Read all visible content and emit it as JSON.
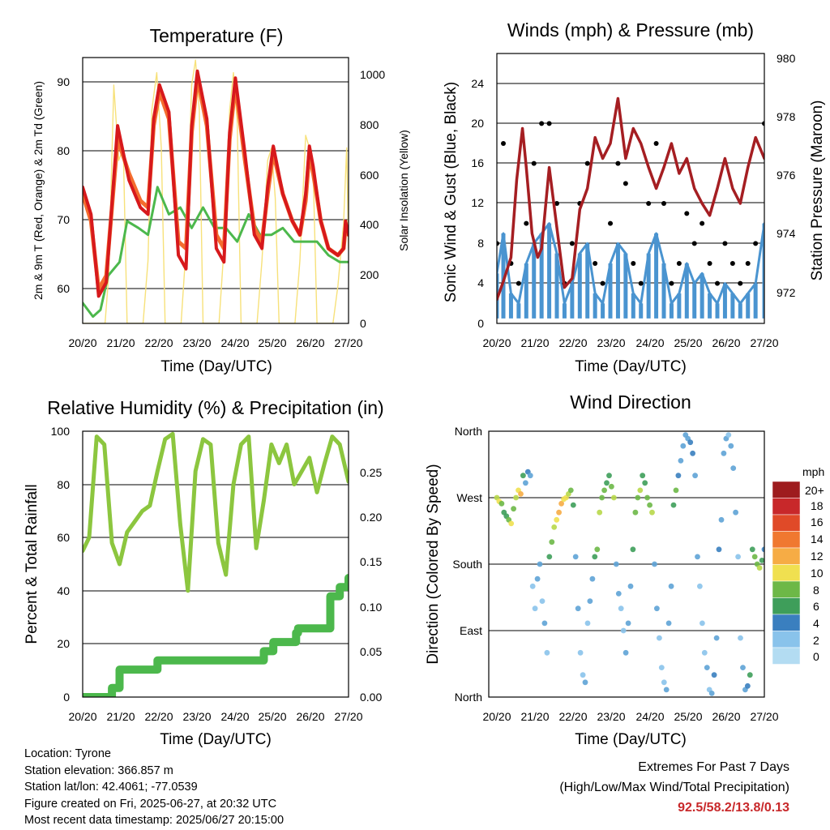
{
  "time_ticks": [
    "20/20",
    "21/20",
    "22/20",
    "23/20",
    "24/20",
    "25/20",
    "26/20",
    "27/20"
  ],
  "time_axis_label": "Time (Day/UTC)",
  "charts": {
    "temperature": {
      "title": "Temperature (F)",
      "ylabel_left": "2m & 9m T (Red, Orange) & 2m Td (Green)",
      "ylabel_right": "Solar Insolation (Yellow)",
      "left_ticks": [
        "60",
        "70",
        "80",
        "90"
      ],
      "right_ticks": [
        "0",
        "200",
        "400",
        "600",
        "800",
        "1000"
      ]
    },
    "winds": {
      "title": "Winds (mph) & Pressure (mb)",
      "ylabel_left": "Sonic Wind & Gust (Blue, Black)",
      "ylabel_right": "Station Pressure (Maroon)",
      "left_ticks": [
        "0",
        "4",
        "8",
        "12",
        "16",
        "20",
        "24"
      ],
      "right_ticks": [
        "972",
        "974",
        "976",
        "978",
        "980"
      ]
    },
    "humidity": {
      "title": "Relative Humidity (%) & Precipitation (in)",
      "ylabel_left": "Percent & Total Rainfall",
      "left_ticks": [
        "0",
        "20",
        "40",
        "60",
        "80",
        "100"
      ],
      "right_ticks": [
        "0.00",
        "0.05",
        "0.10",
        "0.15",
        "0.20",
        "0.25"
      ]
    },
    "direction": {
      "title": "Wind Direction",
      "ylabel_left": "Direction (Colored By Speed)",
      "left_ticks": [
        "North",
        "East",
        "South",
        "West",
        "North"
      ],
      "legend_title": "mph",
      "legend_labels": [
        "20+",
        "18",
        "16",
        "14",
        "12",
        "10",
        "8",
        "6",
        "4",
        "2",
        "0"
      ]
    }
  },
  "colors": {
    "t2m": "#d7191c",
    "t9m": "#f46d2e",
    "td": "#4cb84c",
    "solar": "#f7e17a",
    "wind": "#4a94d0",
    "gust": "#000000",
    "pressure": "#a51e22",
    "rh": "#8cc63f",
    "precip": "#4cb84c",
    "speed_scale": [
      "#b3dcf2",
      "#89c3eb",
      "#5ea3d6",
      "#3a7fbf",
      "#3e9e5a",
      "#6db847",
      "#b8d84a",
      "#f0e050",
      "#f6ac45",
      "#f07830",
      "#e04a28",
      "#c8282a",
      "#9e1c1e"
    ]
  },
  "chart_data": [
    {
      "type": "line",
      "title": "Temperature (F)",
      "xlabel": "Time (Day/UTC)",
      "ylabel": "2m & 9m T (Red, Orange) & 2m Td (Green)",
      "y2label": "Solar Insolation (Yellow)",
      "x_range_days": [
        20.83,
        27.83
      ],
      "ylim": [
        55,
        94
      ],
      "y2lim": [
        0,
        1060
      ],
      "series": [
        {
          "name": "2m T",
          "axis": "left",
          "x": [
            20.83,
            21.05,
            21.25,
            21.45,
            21.75,
            22.05,
            22.35,
            22.55,
            22.7,
            22.85,
            23.1,
            23.35,
            23.55,
            23.7,
            23.85,
            24.1,
            24.35,
            24.55,
            24.7,
            24.85,
            25.1,
            25.35,
            25.55,
            25.7,
            25.85,
            26.1,
            26.35,
            26.55,
            26.7,
            26.8,
            26.9,
            27.1,
            27.3,
            27.55,
            27.7,
            27.75,
            27.83
          ],
          "y": [
            75,
            71,
            59,
            61,
            84,
            76,
            72,
            71,
            85,
            90,
            86,
            65,
            63,
            84,
            92,
            85,
            66,
            64,
            83,
            91,
            80,
            68,
            66,
            75,
            81,
            74,
            70,
            68,
            74,
            81,
            78,
            70,
            66,
            65,
            66,
            70,
            68
          ]
        },
        {
          "name": "9m T",
          "axis": "left",
          "x": [
            20.83,
            21.05,
            21.25,
            21.45,
            21.75,
            22.05,
            22.35,
            22.55,
            22.7,
            22.85,
            23.1,
            23.35,
            23.55,
            23.7,
            23.85,
            24.1,
            24.35,
            24.55,
            24.7,
            24.85,
            25.1,
            25.35,
            25.55,
            25.7,
            25.85,
            26.1,
            26.35,
            26.55,
            26.7,
            26.8,
            26.9,
            27.1,
            27.3,
            27.55,
            27.7,
            27.75,
            27.83
          ],
          "y": [
            74,
            70,
            60,
            62,
            82,
            77,
            73,
            72,
            84,
            89,
            85,
            67,
            66,
            83,
            91,
            84,
            68,
            66,
            82,
            90,
            79,
            69,
            67,
            74,
            80,
            74,
            70,
            68,
            73,
            80,
            77,
            70,
            66,
            65,
            66,
            69,
            68
          ]
        },
        {
          "name": "2m Td",
          "axis": "left",
          "x": [
            20.83,
            21.1,
            21.3,
            21.5,
            21.8,
            22.0,
            22.3,
            22.55,
            22.8,
            23.1,
            23.4,
            23.7,
            24.0,
            24.3,
            24.6,
            24.9,
            25.2,
            25.5,
            25.8,
            26.1,
            26.4,
            26.7,
            27.0,
            27.3,
            27.6,
            27.83
          ],
          "y": [
            58,
            56,
            57,
            62,
            64,
            70,
            69,
            68,
            75,
            71,
            72,
            69,
            72,
            69,
            69,
            67,
            71,
            68,
            68,
            69,
            67,
            67,
            67,
            65,
            64,
            64
          ]
        },
        {
          "name": "Solar Insolation",
          "axis": "right",
          "x": [
            20.83,
            21.42,
            21.52,
            21.65,
            21.78,
            21.9,
            22.0,
            22.42,
            22.55,
            22.65,
            22.78,
            22.9,
            23.0,
            23.42,
            23.55,
            23.7,
            23.8,
            23.9,
            24.0,
            24.42,
            24.55,
            24.7,
            24.8,
            24.9,
            25.0,
            25.42,
            25.55,
            25.7,
            25.8,
            25.9,
            26.0,
            26.42,
            26.55,
            26.7,
            26.8,
            26.9,
            27.0,
            27.42,
            27.55,
            27.7,
            27.78,
            27.83
          ],
          "y": [
            0,
            0,
            200,
            950,
            650,
            700,
            0,
            0,
            250,
            850,
            1000,
            700,
            0,
            0,
            300,
            950,
            1050,
            850,
            0,
            0,
            300,
            850,
            1000,
            800,
            0,
            0,
            250,
            650,
            700,
            500,
            0,
            0,
            250,
            750,
            700,
            600,
            0,
            0,
            150,
            400,
            700,
            300
          ]
        }
      ]
    },
    {
      "type": "line",
      "title": "Winds (mph) & Pressure (mb)",
      "xlabel": "Time (Day/UTC)",
      "ylabel": "Sonic Wind & Gust (Blue, Black)",
      "y2label": "Station Pressure (Maroon)",
      "x_range_days": [
        20.83,
        27.83
      ],
      "ylim": [
        0,
        27
      ],
      "y2lim": [
        971,
        980
      ],
      "series": [
        {
          "name": "Sonic Wind",
          "axis": "left",
          "x": [
            20.83,
            21.0,
            21.2,
            21.4,
            21.6,
            21.8,
            22.0,
            22.2,
            22.4,
            22.6,
            22.8,
            23.0,
            23.2,
            23.4,
            23.6,
            23.8,
            24.0,
            24.2,
            24.4,
            24.6,
            24.8,
            25.0,
            25.2,
            25.4,
            25.6,
            25.8,
            26.0,
            26.2,
            26.4,
            26.6,
            26.8,
            27.0,
            27.2,
            27.4,
            27.6,
            27.83
          ],
          "y": [
            5,
            9,
            3,
            2,
            6,
            8,
            9,
            10,
            7,
            2,
            4,
            7,
            8,
            3,
            2,
            6,
            8,
            7,
            3,
            2,
            7,
            9,
            6,
            2,
            3,
            6,
            4,
            5,
            3,
            2,
            4,
            3,
            2,
            3,
            4,
            10
          ]
        },
        {
          "name": "Gust",
          "axis": "left",
          "x": [
            20.83,
            21.0,
            21.2,
            21.4,
            21.6,
            21.8,
            22.0,
            22.2,
            22.4,
            22.6,
            22.8,
            23.0,
            23.2,
            23.4,
            23.6,
            23.8,
            24.0,
            24.2,
            24.4,
            24.6,
            24.8,
            25.0,
            25.2,
            25.4,
            25.6,
            25.8,
            26.0,
            26.2,
            26.4,
            26.6,
            26.8,
            27.0,
            27.2,
            27.4,
            27.6,
            27.83
          ],
          "y": [
            8,
            18,
            6,
            4,
            10,
            16,
            20,
            20,
            12,
            4,
            8,
            12,
            16,
            6,
            4,
            10,
            16,
            14,
            6,
            4,
            12,
            18,
            12,
            4,
            6,
            11,
            8,
            10,
            6,
            4,
            8,
            6,
            4,
            6,
            8,
            20
          ]
        },
        {
          "name": "Station Pressure",
          "axis": "right",
          "x": [
            20.83,
            21.0,
            21.2,
            21.35,
            21.5,
            21.6,
            21.75,
            21.9,
            22.0,
            22.2,
            22.4,
            22.6,
            22.8,
            23.0,
            23.2,
            23.4,
            23.6,
            23.8,
            24.0,
            24.2,
            24.4,
            24.6,
            24.8,
            25.0,
            25.2,
            25.4,
            25.6,
            25.8,
            26.0,
            26.2,
            26.4,
            26.6,
            26.8,
            27.0,
            27.2,
            27.4,
            27.6,
            27.83
          ],
          "y": [
            971.8,
            972.4,
            973.2,
            975.8,
            977.5,
            976.2,
            974.0,
            973.2,
            973.5,
            976.2,
            974.2,
            972.2,
            972.5,
            974.8,
            975.5,
            977.2,
            976.5,
            977.0,
            978.5,
            976.5,
            977.5,
            977.0,
            976.2,
            975.5,
            976.2,
            977.0,
            976.0,
            976.5,
            975.5,
            975.0,
            974.6,
            975.5,
            976.5,
            975.5,
            975.0,
            976.2,
            977.2,
            976.5
          ]
        }
      ]
    },
    {
      "type": "line",
      "title": "Relative Humidity (%) & Precipitation (in)",
      "xlabel": "Time (Day/UTC)",
      "ylabel": "Percent & Total Rainfall",
      "x_range_days": [
        20.83,
        27.83
      ],
      "ylim": [
        0,
        100
      ],
      "y2lim": [
        0,
        0.29
      ],
      "series": [
        {
          "name": "Relative Humidity",
          "axis": "left",
          "x": [
            20.83,
            21.0,
            21.2,
            21.4,
            21.6,
            21.8,
            22.0,
            22.2,
            22.4,
            22.6,
            22.8,
            23.0,
            23.2,
            23.4,
            23.6,
            23.8,
            24.0,
            24.2,
            24.4,
            24.6,
            24.8,
            25.0,
            25.2,
            25.4,
            25.6,
            25.8,
            26.0,
            26.2,
            26.4,
            26.6,
            26.8,
            27.0,
            27.2,
            27.4,
            27.6,
            27.83
          ],
          "y": [
            55,
            60,
            98,
            95,
            58,
            50,
            62,
            66,
            70,
            72,
            85,
            97,
            99,
            65,
            40,
            85,
            97,
            95,
            58,
            46,
            80,
            95,
            98,
            56,
            74,
            95,
            88,
            95,
            80,
            85,
            90,
            77,
            88,
            98,
            95,
            81
          ]
        },
        {
          "name": "Total Precipitation",
          "axis": "right",
          "x": [
            20.83,
            21.5,
            21.6,
            21.8,
            22.6,
            22.8,
            24.0,
            25.2,
            25.6,
            25.85,
            26.2,
            26.45,
            26.5,
            27.05,
            27.3,
            27.35,
            27.6,
            27.83
          ],
          "y": [
            0.0,
            0.0,
            0.01,
            0.03,
            0.03,
            0.04,
            0.04,
            0.04,
            0.05,
            0.06,
            0.06,
            0.07,
            0.075,
            0.075,
            0.075,
            0.11,
            0.12,
            0.13
          ]
        }
      ]
    },
    {
      "type": "scatter",
      "title": "Wind Direction",
      "xlabel": "Time (Day/UTC)",
      "ylabel": "Direction (Colored By Speed)",
      "x_range_days": [
        20.83,
        27.83
      ],
      "ylim": [
        0,
        360
      ],
      "yticks": [
        "North",
        "East",
        "South",
        "West",
        "North"
      ],
      "legend": {
        "title": "mph",
        "labels": [
          "20+",
          "18",
          "16",
          "14",
          "12",
          "10",
          "8",
          "6",
          "4",
          "2",
          "0"
        ]
      },
      "points_dir": [
        270,
        265,
        262,
        250,
        245,
        240,
        235,
        255,
        270,
        280,
        275,
        300,
        290,
        305,
        300,
        150,
        120,
        160,
        180,
        130,
        100,
        60,
        190,
        210,
        230,
        240,
        250,
        262,
        268,
        270,
        275,
        280,
        260,
        190,
        120,
        60,
        30,
        20,
        100,
        130,
        160,
        190,
        200,
        250,
        270,
        280,
        290,
        300,
        285,
        270,
        180,
        140,
        120,
        90,
        60,
        100,
        150,
        200,
        250,
        270,
        280,
        300,
        290,
        270,
        260,
        250,
        180,
        120,
        80,
        40,
        20,
        10,
        100,
        150,
        260,
        280,
        300,
        320,
        340,
        355,
        350,
        345,
        330,
        300,
        190,
        150,
        100,
        60,
        40,
        10,
        5,
        30,
        80,
        200,
        240,
        330,
        350,
        355,
        340,
        310,
        250,
        190,
        80,
        40,
        10,
        15,
        30,
        200,
        190,
        180,
        175,
        185,
        200
      ],
      "points_speed": [
        10,
        12,
        8,
        6,
        7,
        9,
        11,
        9,
        10,
        12,
        14,
        6,
        4,
        5,
        3,
        2,
        2,
        3,
        4,
        2,
        3,
        2,
        6,
        8,
        10,
        12,
        13,
        14,
        12,
        11,
        10,
        9,
        6,
        4,
        3,
        2,
        2,
        3,
        2,
        3,
        4,
        6,
        8,
        10,
        9,
        8,
        7,
        6,
        9,
        10,
        4,
        3,
        2,
        2,
        3,
        3,
        4,
        6,
        8,
        9,
        10,
        7,
        6,
        8,
        9,
        10,
        4,
        3,
        2,
        2,
        2,
        3,
        3,
        4,
        6,
        8,
        5,
        4,
        3,
        3,
        4,
        5,
        5,
        4,
        3,
        2,
        2,
        2,
        3,
        2,
        4,
        5,
        3,
        5,
        4,
        3,
        3,
        2,
        3,
        4,
        3,
        2,
        2,
        3,
        4,
        5,
        6,
        7,
        8,
        9,
        10,
        6,
        5
      ]
    }
  ],
  "footer": {
    "location": "Location: Tyrone",
    "elevation": "Station elevation: 366.857 m",
    "latlon": "Station lat/lon: 42.4061; -77.0539",
    "created": "Figure created on Fri, 2025-06-27, at 20:32 UTC",
    "recent": "Most recent data timestamp: 2025/06/27 20:15:00"
  },
  "extremes": {
    "title": "Extremes For Past 7 Days",
    "subtitle": "(High/Low/Max Wind/Total Precipitation)",
    "values": "92.5/58.2/13.8/0.13"
  }
}
